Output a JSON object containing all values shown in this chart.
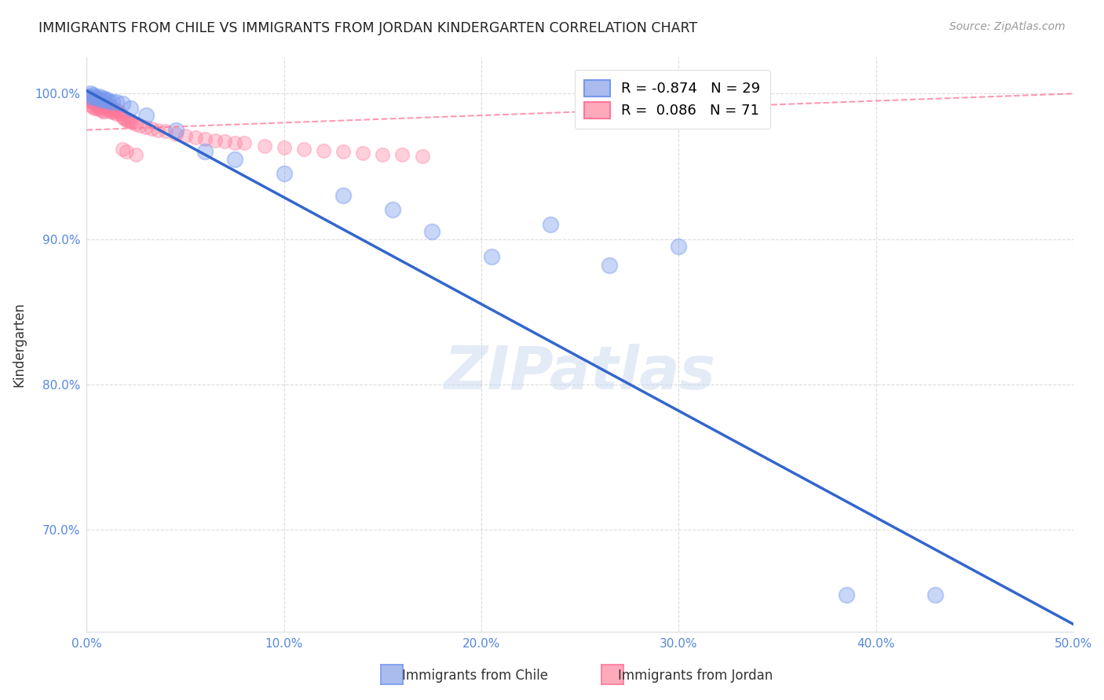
{
  "title": "IMMIGRANTS FROM CHILE VS IMMIGRANTS FROM JORDAN KINDERGARTEN CORRELATION CHART",
  "source": "Source: ZipAtlas.com",
  "ylabel": "Kindergarten",
  "xlim": [
    0.0,
    0.5
  ],
  "ylim": [
    0.63,
    1.025
  ],
  "xticks": [
    0.0,
    0.1,
    0.2,
    0.3,
    0.4,
    0.5
  ],
  "xtick_labels": [
    "0.0%",
    "10.0%",
    "20.0%",
    "30.0%",
    "40.0%",
    "50.0%"
  ],
  "yticks": [
    0.7,
    0.8,
    0.9,
    1.0
  ],
  "ytick_labels": [
    "70.0%",
    "80.0%",
    "90.0%",
    "100.0%"
  ],
  "grid_color": "#cccccc",
  "background_color": "#ffffff",
  "chile_color": "#7799ee",
  "jordan_color": "#ff7799",
  "chile_R": -0.874,
  "chile_N": 29,
  "jordan_R": 0.086,
  "jordan_N": 71,
  "watermark": "ZIPatlas",
  "chile_scatter_x": [
    0.001,
    0.002,
    0.003,
    0.004,
    0.005,
    0.006,
    0.007,
    0.008,
    0.009,
    0.01,
    0.011,
    0.013,
    0.015,
    0.018,
    0.022,
    0.03,
    0.045,
    0.06,
    0.075,
    0.1,
    0.13,
    0.155,
    0.175,
    0.205,
    0.235,
    0.265,
    0.3,
    0.385,
    0.43
  ],
  "chile_scatter_y": [
    0.998,
    1.0,
    0.999,
    0.998,
    0.997,
    0.998,
    0.996,
    0.997,
    0.996,
    0.996,
    0.995,
    0.994,
    0.994,
    0.993,
    0.99,
    0.985,
    0.975,
    0.96,
    0.955,
    0.945,
    0.93,
    0.92,
    0.905,
    0.888,
    0.91,
    0.882,
    0.895,
    0.655,
    0.655
  ],
  "chile_trendline_x": [
    0.0,
    0.5
  ],
  "chile_trendline_y": [
    1.002,
    0.635
  ],
  "jordan_trendline_x": [
    0.0,
    0.5
  ],
  "jordan_trendline_y": [
    0.975,
    1.0
  ],
  "jordan_scatter_x": [
    0.001,
    0.001,
    0.002,
    0.002,
    0.002,
    0.003,
    0.003,
    0.003,
    0.004,
    0.004,
    0.004,
    0.005,
    0.005,
    0.005,
    0.006,
    0.006,
    0.006,
    0.007,
    0.007,
    0.007,
    0.008,
    0.008,
    0.008,
    0.009,
    0.009,
    0.009,
    0.01,
    0.01,
    0.011,
    0.011,
    0.012,
    0.012,
    0.013,
    0.013,
    0.014,
    0.015,
    0.015,
    0.016,
    0.017,
    0.018,
    0.019,
    0.02,
    0.021,
    0.022,
    0.023,
    0.025,
    0.027,
    0.03,
    0.033,
    0.036,
    0.04,
    0.045,
    0.05,
    0.055,
    0.06,
    0.065,
    0.07,
    0.075,
    0.08,
    0.09,
    0.1,
    0.11,
    0.12,
    0.13,
    0.14,
    0.15,
    0.16,
    0.17,
    0.018,
    0.02,
    0.025
  ],
  "jordan_scatter_y": [
    0.998,
    0.996,
    0.998,
    0.995,
    0.992,
    0.997,
    0.994,
    0.991,
    0.996,
    0.993,
    0.99,
    0.997,
    0.994,
    0.99,
    0.996,
    0.993,
    0.99,
    0.995,
    0.992,
    0.989,
    0.995,
    0.992,
    0.988,
    0.994,
    0.991,
    0.988,
    0.993,
    0.99,
    0.992,
    0.989,
    0.991,
    0.988,
    0.99,
    0.987,
    0.988,
    0.989,
    0.986,
    0.988,
    0.986,
    0.984,
    0.983,
    0.982,
    0.981,
    0.981,
    0.98,
    0.979,
    0.978,
    0.977,
    0.976,
    0.975,
    0.974,
    0.972,
    0.971,
    0.97,
    0.969,
    0.968,
    0.967,
    0.966,
    0.966,
    0.964,
    0.963,
    0.962,
    0.961,
    0.96,
    0.959,
    0.958,
    0.958,
    0.957,
    0.962,
    0.96,
    0.958
  ]
}
